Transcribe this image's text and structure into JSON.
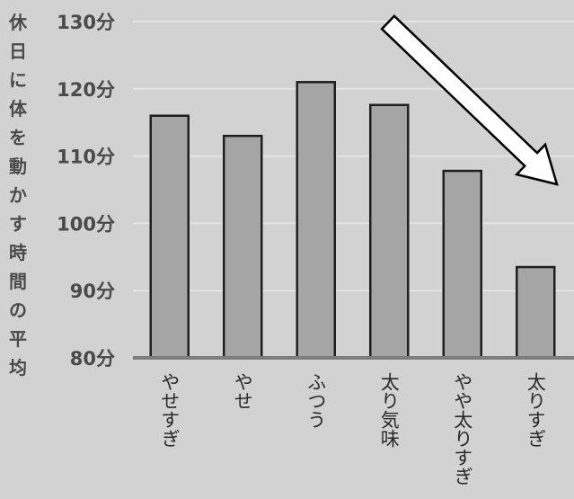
{
  "chart_data": {
    "type": "bar",
    "ylabel": "休日に体を動かす時間の平均",
    "categories": [
      "やせすぎ",
      "やせ",
      "ふつう",
      "太り気味",
      "やや太りすぎ",
      "太りすぎ"
    ],
    "values": [
      116,
      113,
      121,
      117.6,
      107.8,
      93.5
    ],
    "ylim": [
      80,
      130
    ],
    "yticks": [
      80,
      90,
      100,
      110,
      120,
      130
    ],
    "ytick_labels": [
      "80分",
      "90分",
      "100分",
      "110分",
      "120分",
      "130分"
    ],
    "grid": true,
    "annotation": "downward-trend-arrow",
    "colors": {
      "background": "#d3d2d2",
      "bar_fill": "#a5a5a5",
      "bar_stroke": "#1f1f1f",
      "gridline": "#e4e4e4",
      "axis": "#7d7d7d",
      "text": "#4a4a4a"
    }
  }
}
